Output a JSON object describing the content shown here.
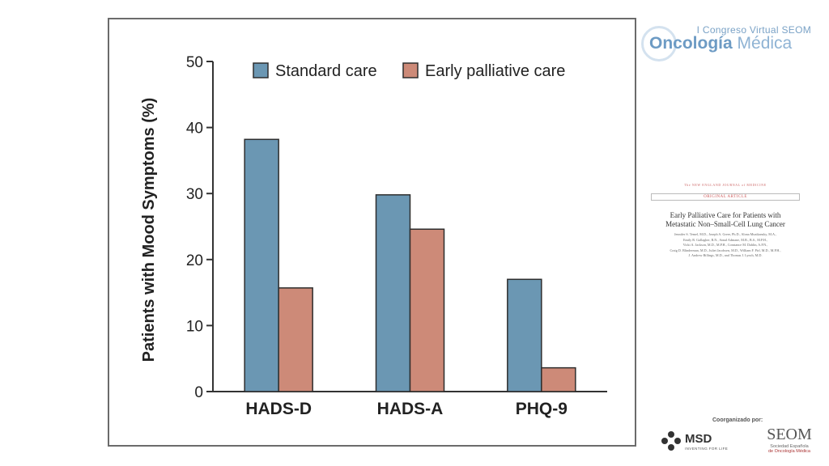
{
  "chart_data": {
    "type": "bar",
    "categories": [
      "HADS-D",
      "HADS-A",
      "PHQ-9"
    ],
    "series": [
      {
        "name": "Standard care",
        "values": [
          38.2,
          29.8,
          17.0
        ],
        "color": "#6b97b3"
      },
      {
        "name": "Early palliative care",
        "values": [
          15.7,
          24.6,
          3.6
        ],
        "color": "#cd8a78"
      }
    ],
    "ylabel": "Patients with Mood Symptoms (%)",
    "xlabel": "",
    "ylim": [
      0,
      50
    ],
    "yticks": [
      "0",
      "10",
      "20",
      "30",
      "40",
      "50"
    ],
    "legend_position": "top",
    "grid": false
  },
  "branding": {
    "congress": "I Congreso Virtual SEOM",
    "name_part1": "Oncología",
    "name_part2": "Médica",
    "coorganized": "Coorganizado por:",
    "msd": "MSD",
    "msd_tagline": "INVENTING FOR LIFE",
    "seom": "SEOM",
    "seom_sub1": "Sociedad Española",
    "seom_sub2": "de Oncología Médica"
  },
  "article": {
    "journal": "The NEW ENGLAND JOURNAL of MEDICINE",
    "section": "ORIGINAL ARTICLE",
    "title_line1": "Early Palliative Care for Patients with",
    "title_line2": "Metastatic Non–Small-Cell Lung Cancer",
    "authors_line1": "Jennifer S. Temel, M.D., Joseph A. Greer, Ph.D., Alona Muzikansky, M.A.,",
    "authors_line2": "Emily R. Gallagher, R.N., Sonal Admane, M.B., B.S., M.P.H.,",
    "authors_line3": "Vicki A. Jackson, M.D., M.P.H., Constance M. Dahlin, A.P.N.,",
    "authors_line4": "Craig D. Blinderman, M.D., Juliet Jacobsen, M.D., William F. Pirl, M.D., M.P.H.,",
    "authors_line5": "J. Andrew Billings, M.D., and Thomas J. Lynch, M.D."
  },
  "colors": {
    "axis": "#333333",
    "frame": "#6b6b6b"
  }
}
